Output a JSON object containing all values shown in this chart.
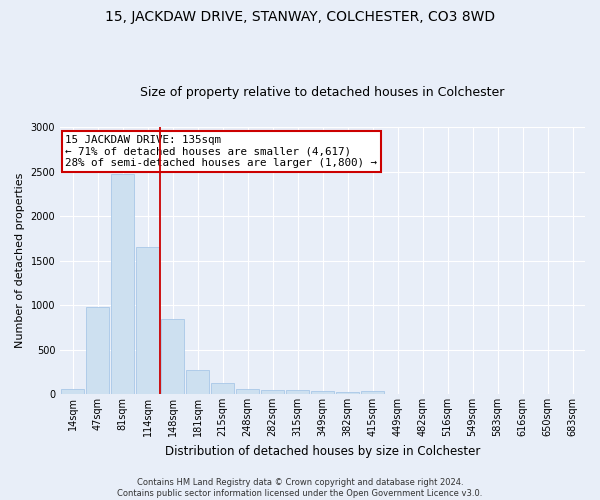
{
  "title": "15, JACKDAW DRIVE, STANWAY, COLCHESTER, CO3 8WD",
  "subtitle": "Size of property relative to detached houses in Colchester",
  "xlabel": "Distribution of detached houses by size in Colchester",
  "ylabel": "Number of detached properties",
  "categories": [
    "14sqm",
    "47sqm",
    "81sqm",
    "114sqm",
    "148sqm",
    "181sqm",
    "215sqm",
    "248sqm",
    "282sqm",
    "315sqm",
    "349sqm",
    "382sqm",
    "415sqm",
    "449sqm",
    "482sqm",
    "516sqm",
    "549sqm",
    "583sqm",
    "616sqm",
    "650sqm",
    "683sqm"
  ],
  "values": [
    55,
    980,
    2470,
    1650,
    840,
    270,
    120,
    55,
    40,
    50,
    30,
    20,
    30,
    5,
    5,
    5,
    0,
    0,
    0,
    0,
    0
  ],
  "bar_color": "#cde0f0",
  "bar_edge_color": "#a8c8e8",
  "highlight_bar_index": 3,
  "vline_color": "#cc0000",
  "vline_position": 3.5,
  "ylim": [
    0,
    3000
  ],
  "yticks": [
    0,
    500,
    1000,
    1500,
    2000,
    2500,
    3000
  ],
  "annotation_title": "15 JACKDAW DRIVE: 135sqm",
  "annotation_line1": "← 71% of detached houses are smaller (4,617)",
  "annotation_line2": "28% of semi-detached houses are larger (1,800) →",
  "annotation_box_color": "#ffffff",
  "annotation_box_edge_color": "#cc0000",
  "footer_line1": "Contains HM Land Registry data © Crown copyright and database right 2024.",
  "footer_line2": "Contains public sector information licensed under the Open Government Licence v3.0.",
  "background_color": "#e8eef8",
  "grid_color": "#ffffff",
  "title_fontsize": 10,
  "subtitle_fontsize": 9,
  "tick_fontsize": 7,
  "ylabel_fontsize": 8,
  "xlabel_fontsize": 8.5,
  "annotation_fontsize": 7.8,
  "footer_fontsize": 6
}
